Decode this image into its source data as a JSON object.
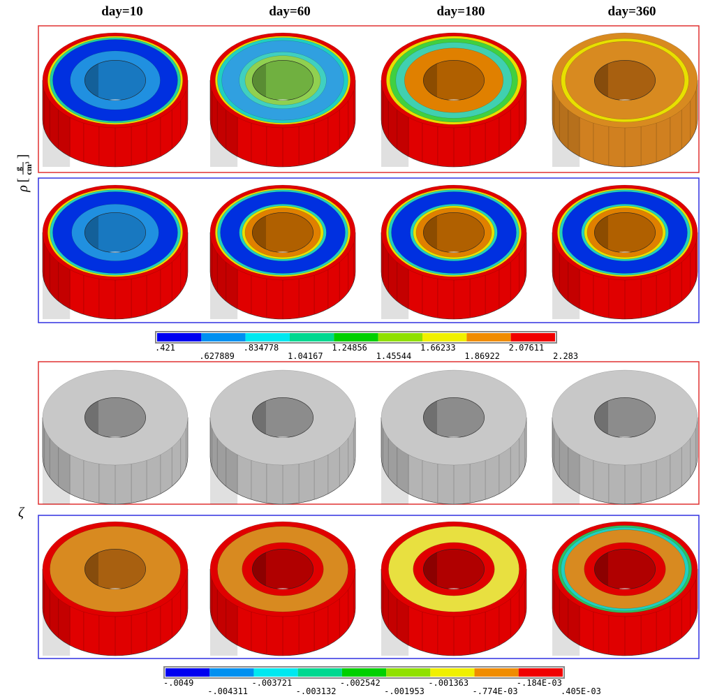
{
  "columns": [
    "day=10",
    "day=60",
    "day=180",
    "day=360"
  ],
  "row_labels": {
    "rho": {
      "symbol": "ρ",
      "open": "[",
      "numerator": "g",
      "denominator": "cm³",
      "close": "]"
    },
    "zeta": "ζ"
  },
  "colorbars": [
    {
      "colors": [
        "#0000f0",
        "#0090f0",
        "#00e8f0",
        "#00d890",
        "#00d000",
        "#90e000",
        "#f0f000",
        "#f08c00",
        "#f00000"
      ],
      "labels": [
        ".421",
        ".627889",
        ".834778",
        "1.04167",
        "1.24856",
        "1.45544",
        "1.66233",
        "1.86922",
        "2.07611",
        "2.283"
      ]
    },
    {
      "colors": [
        "#0000f0",
        "#0090f0",
        "#00e8f0",
        "#00d890",
        "#00d000",
        "#90e000",
        "#f0f000",
        "#f08c00",
        "#f00000"
      ],
      "labels": [
        "-.0049",
        "-.004311",
        "-.003721",
        "-.003132",
        "-.002542",
        "-.001953",
        "-.001363",
        "-.774E-03",
        "-.184E-03",
        ".405E-03"
      ]
    }
  ],
  "panels": [
    [
      {
        "side": "#e00000",
        "hole": "#1878c0",
        "bands": [
          [
            "#e00000",
            1
          ],
          [
            "#e8e000",
            0.93
          ],
          [
            "#20d0a0",
            0.9
          ],
          [
            "#0030e0",
            0.86
          ],
          [
            "#2090e0",
            0.62
          ]
        ]
      },
      {
        "side": "#e00000",
        "hole": "#70b040",
        "bands": [
          [
            "#e00000",
            1
          ],
          [
            "#e8e000",
            0.93
          ],
          [
            "#20d0c0",
            0.9
          ],
          [
            "#30a0e0",
            0.84
          ],
          [
            "#40d0c0",
            0.6
          ],
          [
            "#90d050",
            0.52
          ]
        ]
      },
      {
        "side": "#e00000",
        "hole": "#b06000",
        "bands": [
          [
            "#e00000",
            1
          ],
          [
            "#e8e000",
            0.93
          ],
          [
            "#40d040",
            0.88
          ],
          [
            "#40d0b0",
            0.8
          ],
          [
            "#e08000",
            0.68
          ]
        ]
      },
      {
        "side": "#d08020",
        "hole": "#a86010",
        "bands": [
          [
            "#d88a20",
            1
          ],
          [
            "#e8e000",
            0.88
          ],
          [
            "#d88a20",
            0.82
          ]
        ]
      }
    ],
    [
      {
        "side": "#e00000",
        "hole": "#1878c0",
        "bands": [
          [
            "#e00000",
            1
          ],
          [
            "#e8e000",
            0.93
          ],
          [
            "#20d0c0",
            0.9
          ],
          [
            "#0030e0",
            0.86
          ],
          [
            "#2090e0",
            0.6
          ]
        ]
      },
      {
        "side": "#e00000",
        "hole": "#b06000",
        "bands": [
          [
            "#e00000",
            1
          ],
          [
            "#e8e000",
            0.93
          ],
          [
            "#20d0c0",
            0.9
          ],
          [
            "#0030e0",
            0.86
          ],
          [
            "#20d0c0",
            0.6
          ],
          [
            "#e8e000",
            0.56
          ],
          [
            "#e08000",
            0.52
          ]
        ]
      },
      {
        "side": "#e00000",
        "hole": "#b06000",
        "bands": [
          [
            "#e00000",
            1
          ],
          [
            "#e8e000",
            0.93
          ],
          [
            "#20d0c0",
            0.9
          ],
          [
            "#0030e0",
            0.86
          ],
          [
            "#20d0c0",
            0.6
          ],
          [
            "#e8e000",
            0.56
          ],
          [
            "#e08000",
            0.52
          ]
        ]
      },
      {
        "side": "#e00000",
        "hole": "#b06000",
        "bands": [
          [
            "#e00000",
            1
          ],
          [
            "#e8e000",
            0.93
          ],
          [
            "#20d0c0",
            0.9
          ],
          [
            "#0030e0",
            0.86
          ],
          [
            "#20d0c0",
            0.6
          ],
          [
            "#e8e000",
            0.56
          ],
          [
            "#e08000",
            0.52
          ]
        ]
      }
    ],
    [
      {
        "side": "#b4b4b4",
        "hole": "#8c8c8c",
        "bands": [
          [
            "#c8c8c8",
            1
          ]
        ]
      },
      {
        "side": "#b4b4b4",
        "hole": "#8c8c8c",
        "bands": [
          [
            "#c8c8c8",
            1
          ]
        ]
      },
      {
        "side": "#b4b4b4",
        "hole": "#8c8c8c",
        "bands": [
          [
            "#c8c8c8",
            1
          ]
        ]
      },
      {
        "side": "#b4b4b4",
        "hole": "#8c8c8c",
        "bands": [
          [
            "#c8c8c8",
            1
          ]
        ]
      }
    ],
    [
      {
        "side": "#e00000",
        "hole": "#a86010",
        "bands": [
          [
            "#e00000",
            1
          ],
          [
            "#d88a20",
            0.9
          ]
        ]
      },
      {
        "side": "#e00000",
        "hole": "#b00000",
        "bands": [
          [
            "#e00000",
            1
          ],
          [
            "#d88a20",
            0.9
          ],
          [
            "#e00000",
            0.56
          ]
        ]
      },
      {
        "side": "#e00000",
        "hole": "#b00000",
        "bands": [
          [
            "#e00000",
            1
          ],
          [
            "#e8e040",
            0.9
          ],
          [
            "#e00000",
            0.56
          ]
        ]
      },
      {
        "side": "#e00000",
        "hole": "#b00000",
        "bands": [
          [
            "#e00000",
            1
          ],
          [
            "#30c060",
            0.92
          ],
          [
            "#20d0c0",
            0.88
          ],
          [
            "#d88a20",
            0.83
          ],
          [
            "#e00000",
            0.56
          ]
        ]
      }
    ]
  ]
}
